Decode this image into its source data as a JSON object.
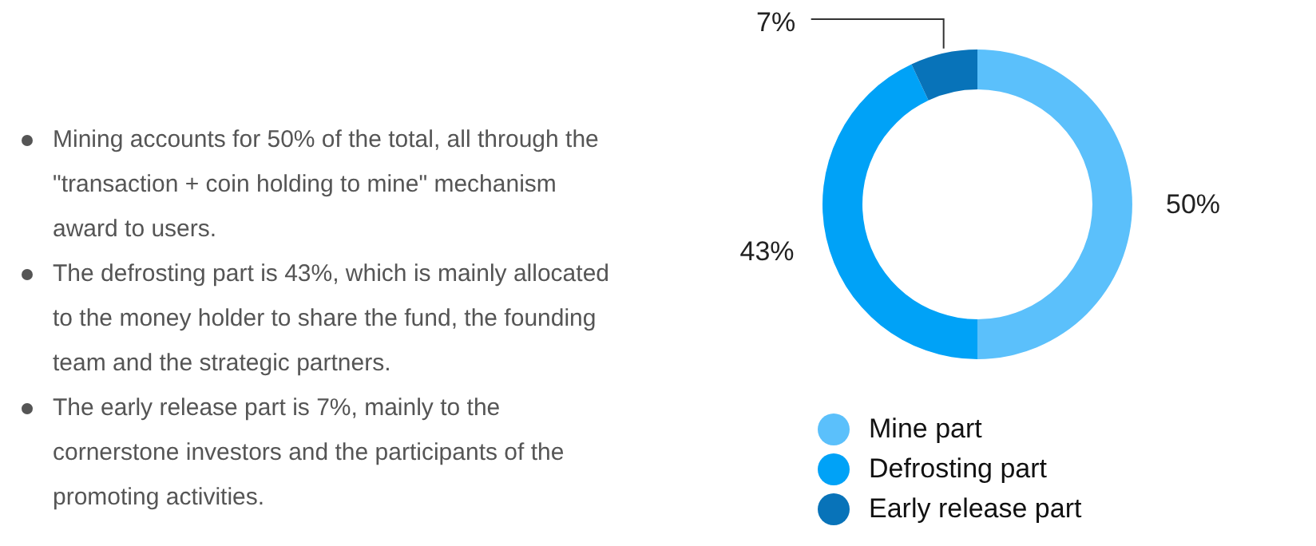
{
  "chart_data": {
    "type": "donut",
    "categories": [
      "Mine part",
      "Defrosting part",
      "Early release part"
    ],
    "values": [
      50,
      43,
      7
    ],
    "colors": [
      "#5bc0fb",
      "#00a2f7",
      "#0873b9"
    ],
    "value_labels": [
      "50%",
      "43%",
      "7%"
    ],
    "legend": "bottom",
    "annotations": [
      "Mining accounts for 50% of the total, all through the \"transaction + coin holding to mine\" mechanism award to users.",
      "The defrosting part is 43%, which is mainly allocated to the money holder to share the fund, the founding team and the strategic partners.",
      "The early release part is 7%, mainly to the cornerstone investors and the participants of the promoting activities."
    ]
  }
}
